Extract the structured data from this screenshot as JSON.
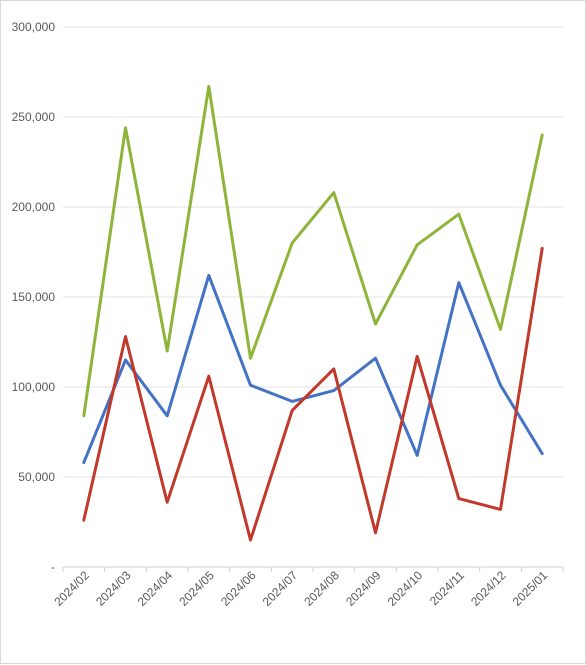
{
  "chart_data": {
    "type": "line",
    "title": "",
    "xlabel": "",
    "ylabel": "",
    "categories": [
      "2024/02",
      "2024/03",
      "2024/04",
      "2024/05",
      "2024/06",
      "2024/07",
      "2024/08",
      "2024/09",
      "2024/10",
      "2024/11",
      "2024/12",
      "2025/01"
    ],
    "y_ticks": [
      "-",
      "50,000",
      "100,000",
      "150,000",
      "200,000",
      "250,000",
      "300,000"
    ],
    "ylim": [
      0,
      300000
    ],
    "grid": true,
    "legend": "none",
    "series": [
      {
        "color": "#4472c4",
        "values": [
          58000,
          115000,
          84000,
          162000,
          101000,
          92000,
          98000,
          116000,
          62000,
          158000,
          101000,
          63000
        ]
      },
      {
        "color": "#c0392b",
        "values": [
          26000,
          128000,
          36000,
          106000,
          15000,
          87000,
          110000,
          19000,
          117000,
          38000,
          32000,
          177000
        ]
      },
      {
        "color": "#8fb43a",
        "values": [
          84000,
          244000,
          120000,
          267000,
          116000,
          180000,
          208000,
          135000,
          179000,
          196000,
          132000,
          240000
        ]
      }
    ]
  }
}
